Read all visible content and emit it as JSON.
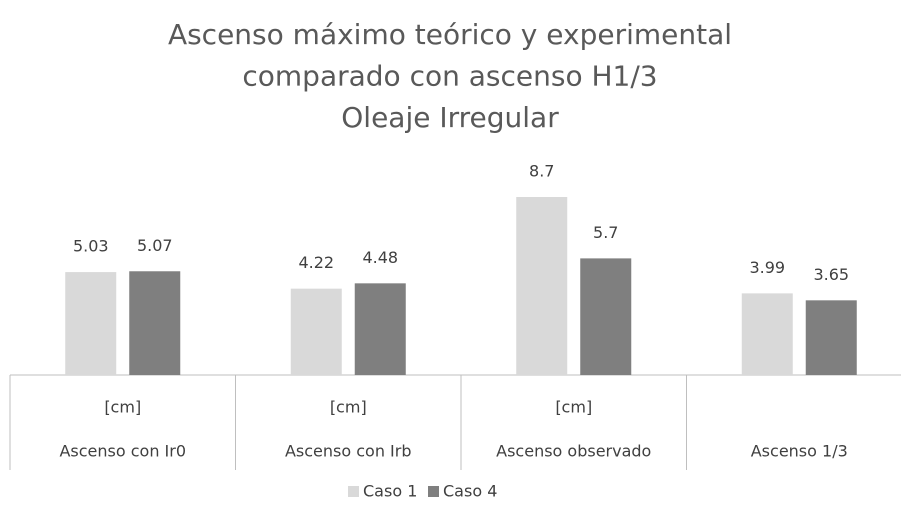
{
  "chart_data": {
    "type": "bar",
    "title": [
      "Ascenso máximo teórico y experimental",
      "comparado con ascenso H1/3",
      "Oleaje Irregular"
    ],
    "categories": [
      "Ascenso con Ir0",
      "Ascenso con Irb",
      "Ascenso observado",
      "Ascenso 1/3"
    ],
    "subcategories": [
      "[cm]",
      "[cm]",
      "[cm]",
      null
    ],
    "series": [
      {
        "name": "Caso 1",
        "color": "#d9d9d9",
        "values": [
          5.03,
          4.22,
          8.7,
          3.99
        ]
      },
      {
        "name": "Caso 4",
        "color": "#7f7f7f",
        "values": [
          5.07,
          4.48,
          5.7,
          3.65
        ]
      }
    ],
    "ylim": [
      0,
      10
    ],
    "legend": "bottom"
  }
}
